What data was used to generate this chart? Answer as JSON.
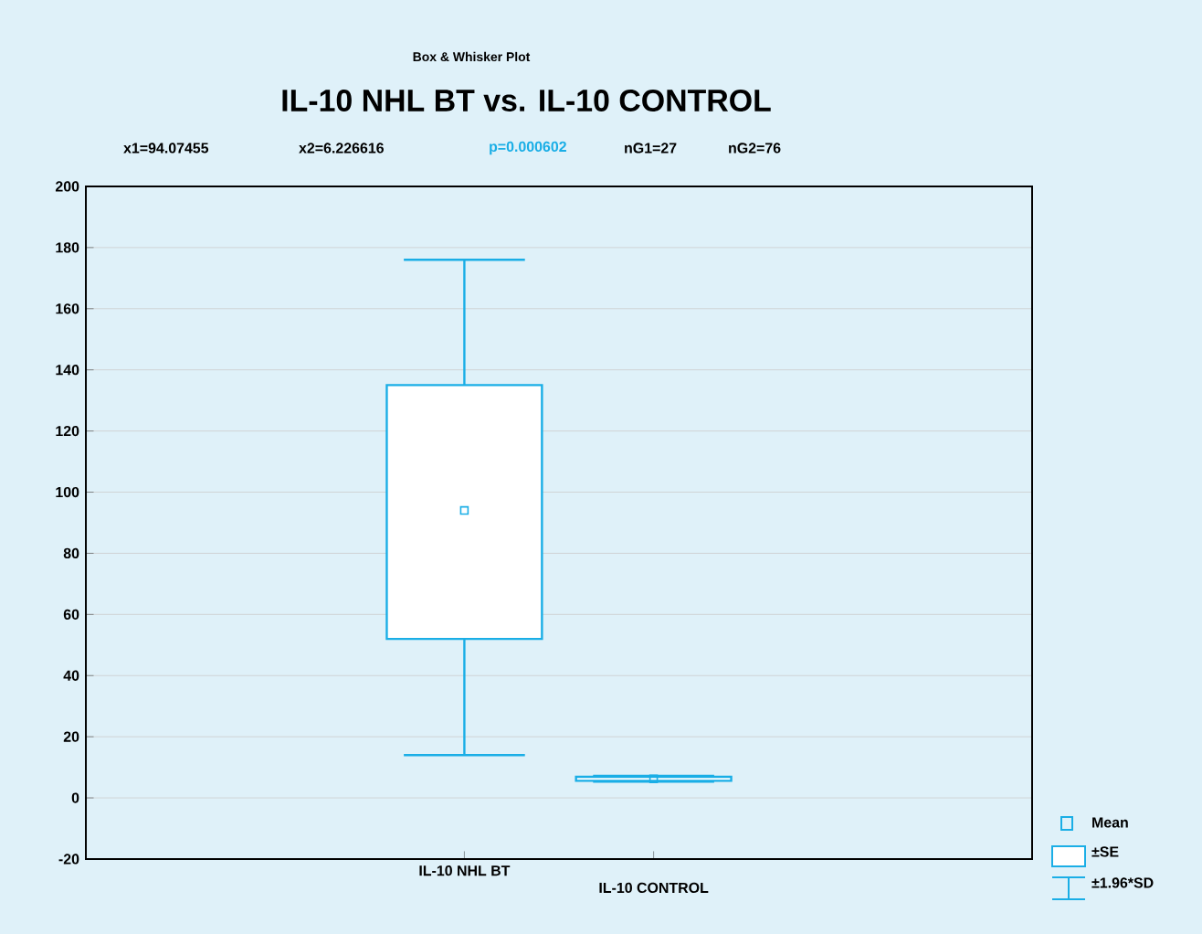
{
  "chart_data": {
    "type": "box",
    "subtitle": "Box & Whisker Plot",
    "title": "IL-10 NHL BT vs. IL-10 CONTROL",
    "categories": [
      "IL-10 NHL BT",
      "IL-10 CONTROL"
    ],
    "color": "#1aaee6",
    "boxes": [
      {
        "low": 14,
        "q1": 52,
        "q3": 135,
        "high": 176,
        "mean": 94
      },
      {
        "low": 5.3,
        "q1": 5.6,
        "q3": 6.9,
        "high": 7.2,
        "mean": 6.2
      }
    ],
    "ylim": [
      -20,
      200
    ],
    "yticks": [
      -20,
      0,
      20,
      40,
      60,
      80,
      100,
      120,
      140,
      160,
      180,
      200
    ],
    "grid": "y",
    "annotations": [
      "x1=94.07455",
      "x2=6.226616",
      "p=0.000602",
      "nG1=27",
      "nG2=76",
      "Mean",
      "±SE",
      "±1.96*SD"
    ]
  }
}
